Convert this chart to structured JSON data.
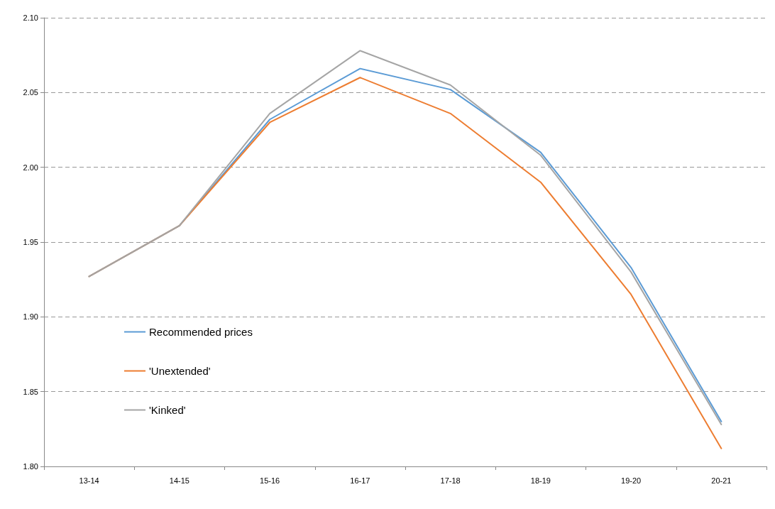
{
  "chart_data": {
    "type": "line",
    "categories": [
      "13-14",
      "14-15",
      "15-16",
      "16-17",
      "17-18",
      "18-19",
      "19-20",
      "20-21"
    ],
    "series": [
      {
        "name": "Recommended prices",
        "color": "#5b9bd5",
        "values": [
          1.927,
          1.961,
          2.032,
          2.066,
          2.052,
          2.01,
          1.933,
          1.83
        ]
      },
      {
        "name": "'Unextended'",
        "color": "#ed7d31",
        "values": [
          1.927,
          1.961,
          2.03,
          2.06,
          2.036,
          1.99,
          1.915,
          1.812
        ]
      },
      {
        "name": "'Kinked'",
        "color": "#a5a5a5",
        "values": [
          1.927,
          1.961,
          2.036,
          2.078,
          2.055,
          2.008,
          1.93,
          1.828
        ]
      }
    ],
    "ylim": [
      1.8,
      2.1
    ],
    "yticks": [
      {
        "value": 1.8,
        "label": "1.80"
      },
      {
        "value": 1.85,
        "label": "1.85"
      },
      {
        "value": 1.9,
        "label": "1.90"
      },
      {
        "value": 1.95,
        "label": "1.95"
      },
      {
        "value": 2.0,
        "label": "2.00"
      },
      {
        "value": 2.05,
        "label": "2.05"
      },
      {
        "value": 2.1,
        "label": "2.10"
      }
    ],
    "grid": "y",
    "legend": "bottom left",
    "marker": "none",
    "line_style": "solid"
  }
}
